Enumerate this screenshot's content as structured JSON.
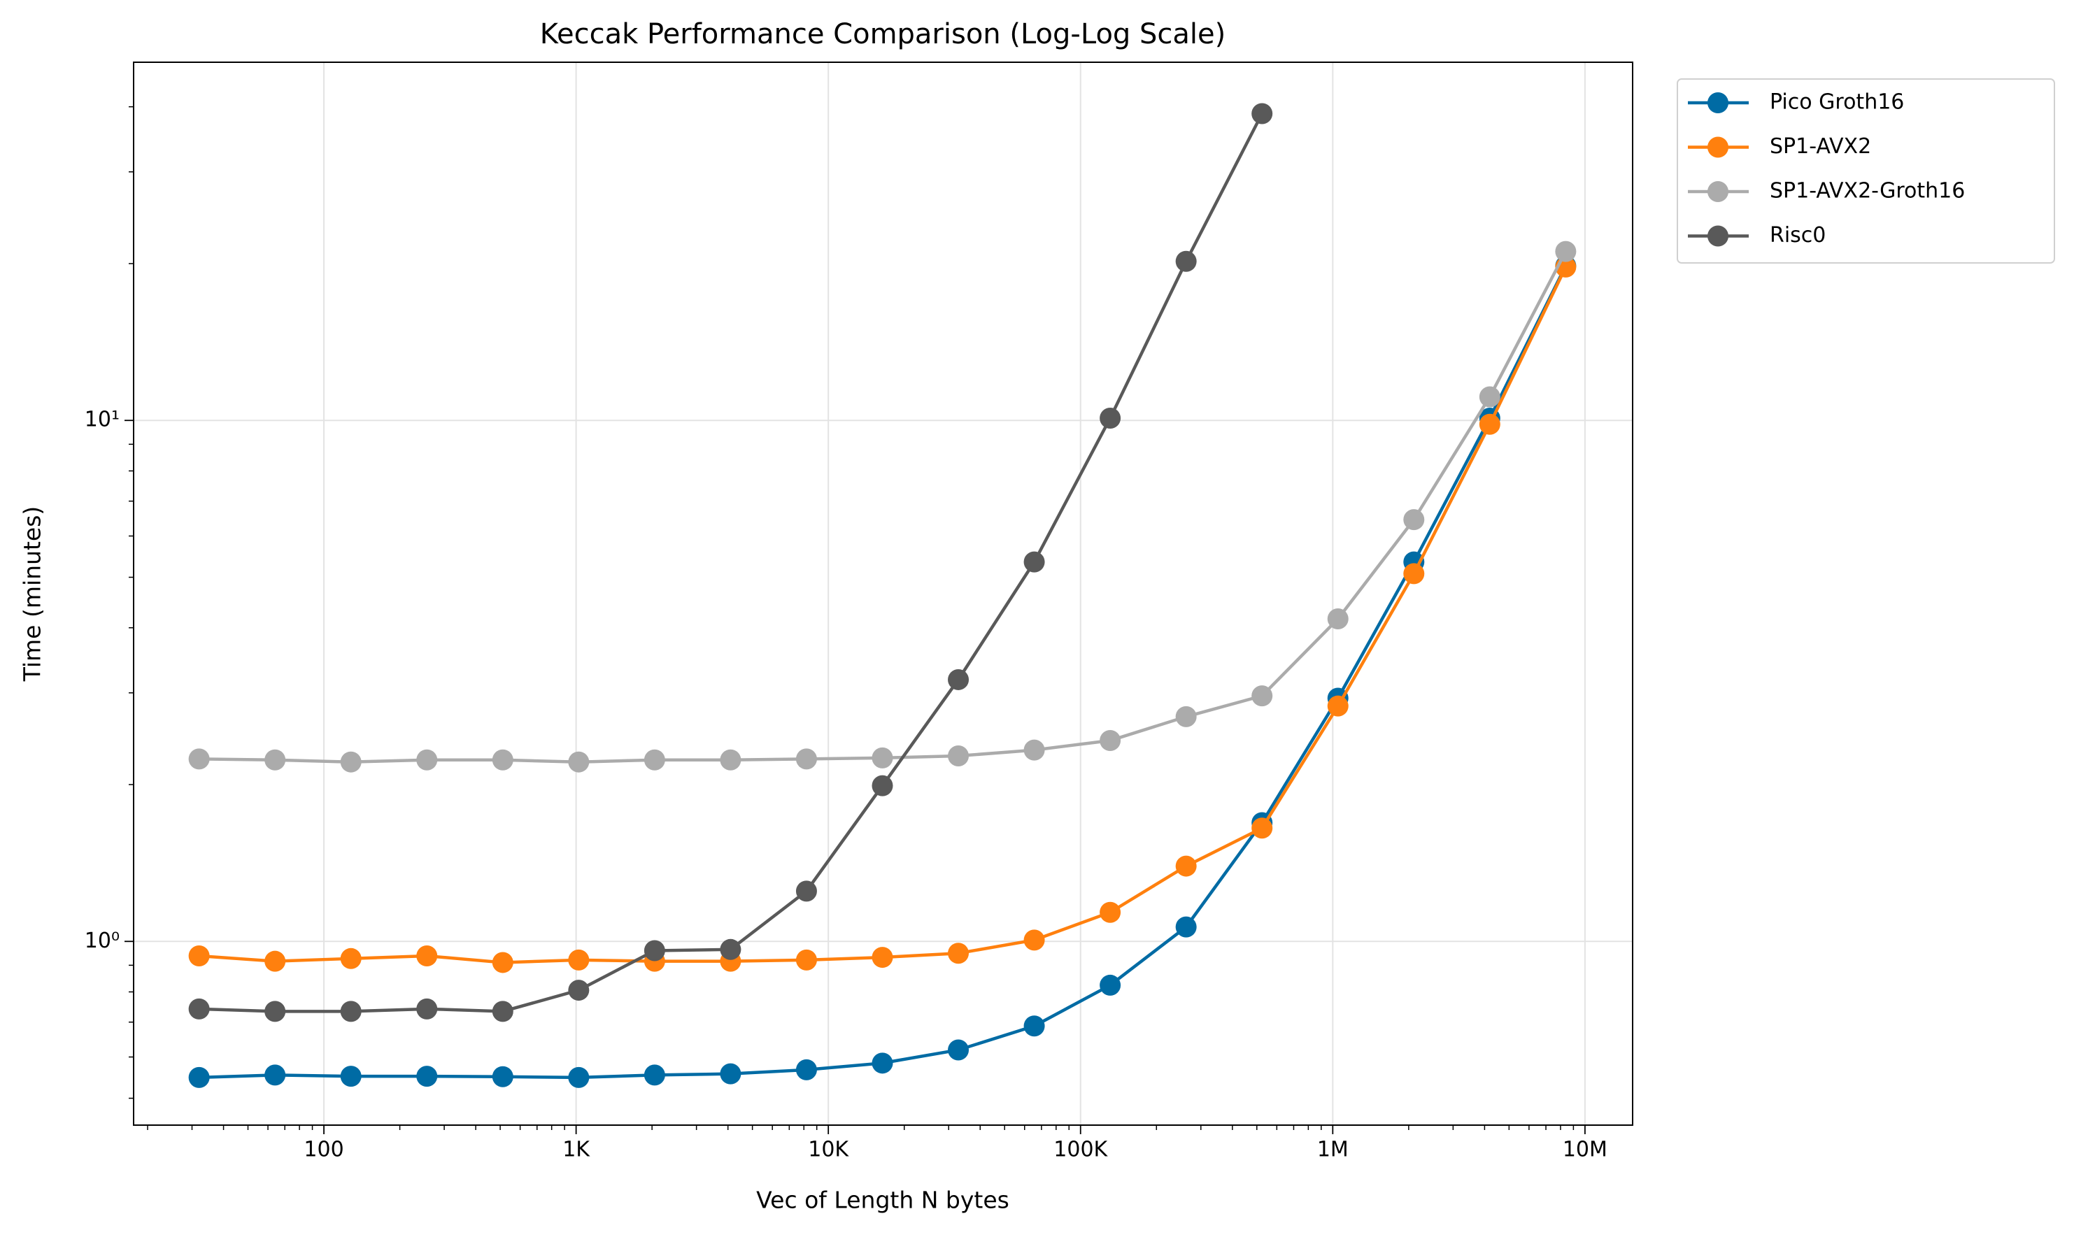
{
  "chart_data": {
    "type": "line",
    "title": "Keccak Performance Comparison (Log-Log Scale)",
    "x_label": "Vec of Length N bytes",
    "y_label": "Time (minutes)",
    "x": [
      32,
      64,
      128,
      256,
      512,
      1024,
      2048,
      4096,
      8192,
      16384,
      32768,
      65536,
      131072,
      262144,
      524288,
      1048576,
      2097152,
      4194304,
      8388608
    ],
    "series": [
      {
        "name": "Pico Groth16",
        "color": "#006ba4",
        "values": [
          0.548,
          0.554,
          0.551,
          0.551,
          0.55,
          0.548,
          0.554,
          0.557,
          0.567,
          0.584,
          0.619,
          0.688,
          0.824,
          1.066,
          1.69,
          2.93,
          5.35,
          10.1,
          19.8
        ]
      },
      {
        "name": "SP1-AVX2",
        "color": "#ff800e",
        "values": [
          0.938,
          0.916,
          0.927,
          0.938,
          0.911,
          0.921,
          0.916,
          0.916,
          0.921,
          0.932,
          0.949,
          1.006,
          1.137,
          1.395,
          1.65,
          2.83,
          5.08,
          9.83,
          19.7
        ]
      },
      {
        "name": "SP1-AVX2-Groth16",
        "color": "#ababab",
        "values": [
          2.24,
          2.23,
          2.21,
          2.23,
          2.23,
          2.21,
          2.23,
          2.23,
          2.24,
          2.25,
          2.27,
          2.33,
          2.43,
          2.7,
          2.96,
          4.16,
          6.45,
          11.1,
          21.1
        ]
      },
      {
        "name": "Risc0",
        "color": "#595959",
        "values": [
          0.742,
          0.734,
          0.734,
          0.742,
          0.734,
          0.806,
          0.96,
          0.965,
          1.249,
          1.99,
          3.18,
          5.35,
          10.1,
          20.2,
          38.8,
          null,
          null,
          null,
          null
        ]
      }
    ],
    "xscale": "log",
    "yscale": "log",
    "xlim": [
      17.6,
      15450000
    ],
    "ylim": [
      0.444,
      48.7
    ],
    "xticks": [
      100,
      {
        "value": 1000,
        "label": "1K"
      },
      {
        "value": 10000,
        "label": "10K"
      },
      {
        "value": 100000,
        "label": "100K"
      },
      {
        "value": 1000000,
        "label": "1M"
      },
      {
        "value": 10000000,
        "label": "10M"
      }
    ],
    "yticks": [
      {
        "value": 1,
        "label": "10⁰"
      },
      {
        "value": 10,
        "label": "10¹"
      }
    ],
    "grid": true,
    "legend": "outside upper right"
  }
}
